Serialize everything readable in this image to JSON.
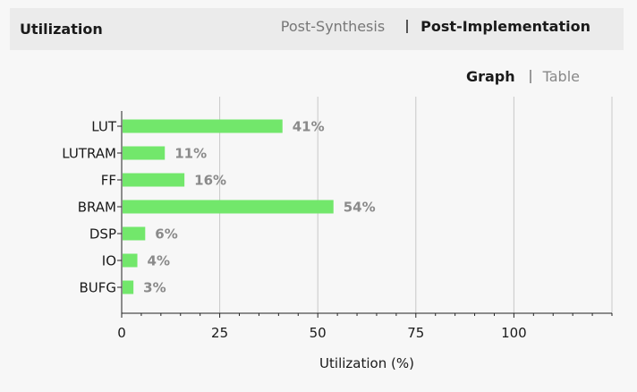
{
  "panel": {
    "title": "Utilization",
    "run_tabs": [
      {
        "label": "Post-Synthesis",
        "active": false
      },
      {
        "label": "Post-Implementation",
        "active": true
      }
    ]
  },
  "view_tabs": [
    {
      "label": "Graph",
      "active": true
    },
    {
      "label": "Table",
      "active": false
    }
  ],
  "colors": {
    "bar": "#72e76b",
    "grid": "#c8c8c8"
  },
  "chart_data": {
    "type": "bar",
    "orientation": "horizontal",
    "categories": [
      "LUT",
      "LUTRAM",
      "FF",
      "BRAM",
      "DSP",
      "IO",
      "BUFG"
    ],
    "values": [
      41,
      11,
      16,
      54,
      6,
      4,
      3
    ],
    "value_labels": [
      "41%",
      "11%",
      "16%",
      "54%",
      "6%",
      "4%",
      "3%"
    ],
    "xlabel": "Utilization (%)",
    "xlim": [
      0,
      125
    ],
    "xticks": [
      0,
      25,
      50,
      75,
      100
    ],
    "grid": true
  }
}
